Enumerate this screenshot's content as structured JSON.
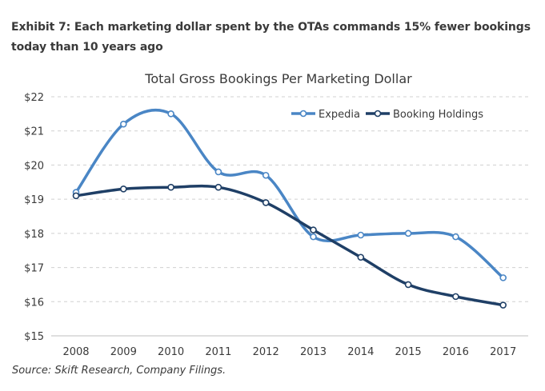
{
  "exhibit_title": "Exhibit 7: Each marketing dollar spent by the OTAs commands 15% fewer bookings today than 10 years ago",
  "source": "Source: Skift Research, Company Filings.",
  "chart_data": {
    "type": "line",
    "title": "Total Gross Bookings Per Marketing Dollar",
    "xlabel": "",
    "ylabel": "",
    "categories": [
      "2008",
      "2009",
      "2010",
      "2011",
      "2012",
      "2013",
      "2014",
      "2015",
      "2016",
      "2017"
    ],
    "ylim": [
      15,
      22
    ],
    "yticks": [
      "$15",
      "$16",
      "$17",
      "$18",
      "$19",
      "$20",
      "$21",
      "$22"
    ],
    "grid": "horizontal dashed",
    "legend_position": "top-right",
    "series": [
      {
        "name": "Expedia",
        "color": "#4a86c5",
        "values": [
          19.2,
          21.2,
          21.5,
          19.8,
          19.7,
          17.9,
          17.95,
          18.0,
          17.9,
          16.7
        ]
      },
      {
        "name": "Booking Holdings",
        "color": "#1f3f66",
        "values": [
          19.1,
          19.3,
          19.35,
          19.35,
          18.9,
          18.1,
          17.3,
          16.5,
          16.15,
          15.9
        ]
      }
    ]
  }
}
